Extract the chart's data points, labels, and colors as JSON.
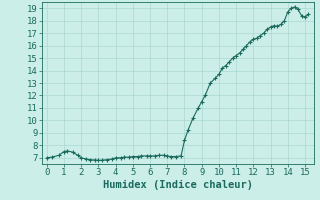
{
  "x": [
    0,
    0.3,
    0.7,
    1.0,
    1.2,
    1.5,
    1.8,
    2.0,
    2.3,
    2.5,
    2.8,
    3.0,
    3.2,
    3.5,
    3.8,
    4.0,
    4.3,
    4.5,
    4.8,
    5.0,
    5.3,
    5.5,
    5.8,
    6.0,
    6.3,
    6.5,
    6.8,
    7.0,
    7.2,
    7.5,
    7.8,
    8.0,
    8.2,
    8.5,
    8.8,
    9.0,
    9.2,
    9.5,
    9.8,
    10.0,
    10.2,
    10.4,
    10.6,
    10.8,
    11.0,
    11.2,
    11.4,
    11.6,
    11.8,
    12.0,
    12.2,
    12.4,
    12.6,
    12.8,
    13.0,
    13.2,
    13.4,
    13.6,
    13.8,
    14.0,
    14.2,
    14.4,
    14.6,
    14.8,
    15.0,
    15.2
  ],
  "y": [
    7.0,
    7.05,
    7.2,
    7.5,
    7.55,
    7.45,
    7.2,
    7.0,
    6.9,
    6.85,
    6.82,
    6.8,
    6.8,
    6.85,
    6.9,
    7.0,
    7.0,
    7.05,
    7.05,
    7.1,
    7.1,
    7.15,
    7.15,
    7.15,
    7.15,
    7.2,
    7.2,
    7.15,
    7.1,
    7.1,
    7.15,
    8.4,
    9.2,
    10.2,
    11.0,
    11.5,
    12.0,
    13.0,
    13.4,
    13.7,
    14.2,
    14.4,
    14.7,
    15.0,
    15.2,
    15.4,
    15.7,
    16.0,
    16.3,
    16.5,
    16.6,
    16.8,
    17.0,
    17.3,
    17.5,
    17.6,
    17.55,
    17.7,
    18.0,
    18.7,
    19.0,
    19.1,
    18.9,
    18.4,
    18.3,
    18.5
  ],
  "xlim": [
    -0.3,
    15.5
  ],
  "ylim": [
    6.5,
    19.5
  ],
  "xticks": [
    0,
    1,
    2,
    3,
    4,
    5,
    6,
    7,
    8,
    9,
    10,
    11,
    12,
    13,
    14,
    15
  ],
  "yticks": [
    7,
    8,
    9,
    10,
    11,
    12,
    13,
    14,
    15,
    16,
    17,
    18,
    19
  ],
  "xlabel": "Humidex (Indice chaleur)",
  "line_color": "#1a6b5e",
  "marker_color": "#1a6b5e",
  "bg_color": "#cceee8",
  "grid_color": "#aad8d0",
  "axis_color": "#1a6b5e",
  "tick_color": "#1a6b5e",
  "label_color": "#1a6b5e",
  "xlabel_fontsize": 7.5,
  "tick_fontsize": 6.5
}
